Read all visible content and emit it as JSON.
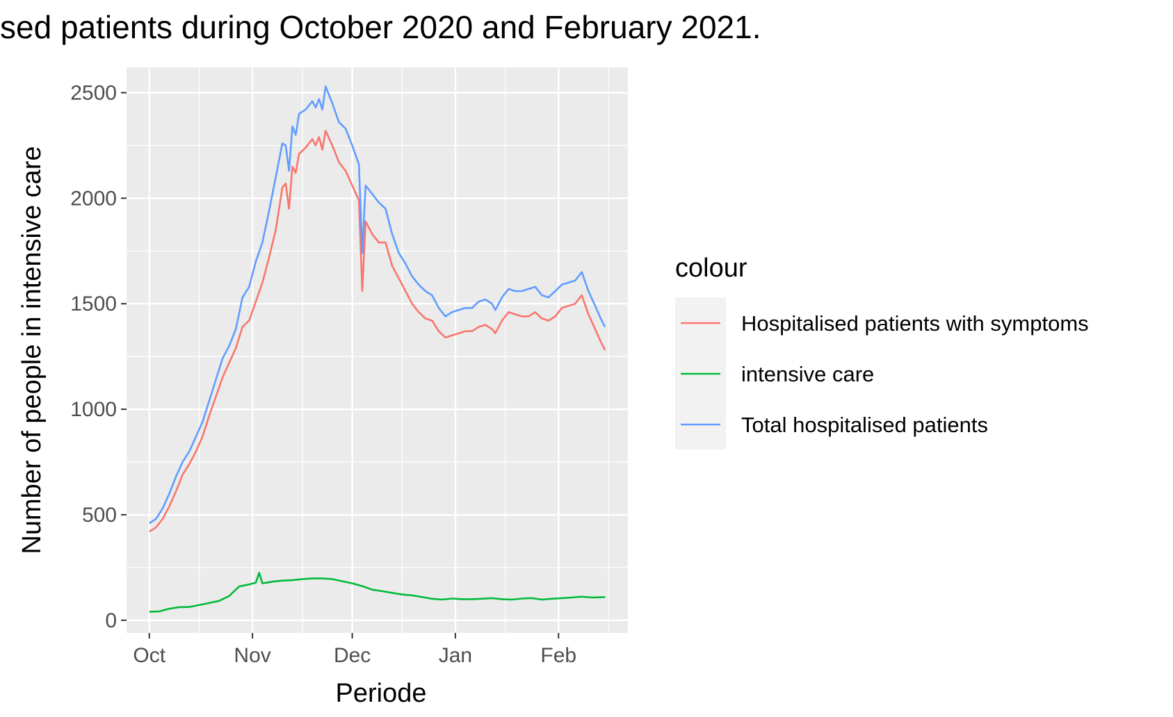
{
  "chart_data": {
    "type": "line",
    "title": "sed patients during October 2020 and February 2021.",
    "xlabel": "Periode",
    "ylabel": "Number of people in intensive care",
    "x_range": [
      "2020-10-01",
      "2021-02-15"
    ],
    "ylim": [
      -60,
      2620
    ],
    "y_ticks": [
      0,
      500,
      1000,
      1500,
      2000,
      2500
    ],
    "y_tick_labels": [
      "0",
      "500",
      "1000",
      "1500",
      "2000",
      "2500"
    ],
    "x_ticks": [
      {
        "date": "2020-10-01",
        "label": "Oct"
      },
      {
        "date": "2020-11-01",
        "label": "Nov"
      },
      {
        "date": "2020-12-01",
        "label": "Dec"
      },
      {
        "date": "2021-01-01",
        "label": "Jan"
      },
      {
        "date": "2021-02-01",
        "label": "Feb"
      }
    ],
    "x_minor_ticks": [
      "2020-10-16",
      "2020-11-16",
      "2020-12-16",
      "2021-01-16",
      "2021-02-16"
    ],
    "grid": true,
    "legend": {
      "title": "colour",
      "position": "right"
    },
    "series": [
      {
        "name": "Hospitalised patients with symptoms",
        "color": "#F8766D",
        "points": [
          [
            "2020-10-01",
            420
          ],
          [
            "2020-10-03",
            440
          ],
          [
            "2020-10-05",
            480
          ],
          [
            "2020-10-07",
            540
          ],
          [
            "2020-10-09",
            610
          ],
          [
            "2020-10-11",
            690
          ],
          [
            "2020-10-13",
            740
          ],
          [
            "2020-10-15",
            800
          ],
          [
            "2020-10-17",
            870
          ],
          [
            "2020-10-19",
            970
          ],
          [
            "2020-10-21",
            1060
          ],
          [
            "2020-10-23",
            1150
          ],
          [
            "2020-10-25",
            1220
          ],
          [
            "2020-10-27",
            1290
          ],
          [
            "2020-10-29",
            1390
          ],
          [
            "2020-10-31",
            1420
          ],
          [
            "2020-11-02",
            1510
          ],
          [
            "2020-11-04",
            1600
          ],
          [
            "2020-11-06",
            1720
          ],
          [
            "2020-11-08",
            1850
          ],
          [
            "2020-11-10",
            2050
          ],
          [
            "2020-11-11",
            2070
          ],
          [
            "2020-11-12",
            1950
          ],
          [
            "2020-11-13",
            2150
          ],
          [
            "2020-11-14",
            2120
          ],
          [
            "2020-11-15",
            2210
          ],
          [
            "2020-11-17",
            2240
          ],
          [
            "2020-11-19",
            2280
          ],
          [
            "2020-11-20",
            2250
          ],
          [
            "2020-11-21",
            2290
          ],
          [
            "2020-11-22",
            2230
          ],
          [
            "2020-11-23",
            2320
          ],
          [
            "2020-11-25",
            2250
          ],
          [
            "2020-11-27",
            2170
          ],
          [
            "2020-11-29",
            2130
          ],
          [
            "2020-12-01",
            2060
          ],
          [
            "2020-12-03",
            1990
          ],
          [
            "2020-12-04",
            1560
          ],
          [
            "2020-12-05",
            1890
          ],
          [
            "2020-12-07",
            1830
          ],
          [
            "2020-12-09",
            1790
          ],
          [
            "2020-12-11",
            1790
          ],
          [
            "2020-12-13",
            1680
          ],
          [
            "2020-12-15",
            1620
          ],
          [
            "2020-12-17",
            1560
          ],
          [
            "2020-12-19",
            1500
          ],
          [
            "2020-12-21",
            1460
          ],
          [
            "2020-12-23",
            1430
          ],
          [
            "2020-12-25",
            1420
          ],
          [
            "2020-12-27",
            1370
          ],
          [
            "2020-12-29",
            1340
          ],
          [
            "2020-12-31",
            1350
          ],
          [
            "2021-01-02",
            1360
          ],
          [
            "2021-01-04",
            1370
          ],
          [
            "2021-01-06",
            1370
          ],
          [
            "2021-01-08",
            1390
          ],
          [
            "2021-01-10",
            1400
          ],
          [
            "2021-01-12",
            1380
          ],
          [
            "2021-01-13",
            1360
          ],
          [
            "2021-01-15",
            1420
          ],
          [
            "2021-01-17",
            1460
          ],
          [
            "2021-01-19",
            1450
          ],
          [
            "2021-01-21",
            1440
          ],
          [
            "2021-01-23",
            1440
          ],
          [
            "2021-01-25",
            1460
          ],
          [
            "2021-01-27",
            1430
          ],
          [
            "2021-01-29",
            1420
          ],
          [
            "2021-01-31",
            1440
          ],
          [
            "2021-02-02",
            1480
          ],
          [
            "2021-02-04",
            1490
          ],
          [
            "2021-02-06",
            1500
          ],
          [
            "2021-02-08",
            1540
          ],
          [
            "2021-02-10",
            1450
          ],
          [
            "2021-02-12",
            1380
          ],
          [
            "2021-02-14",
            1310
          ],
          [
            "2021-02-15",
            1280
          ]
        ]
      },
      {
        "name": "intensive care",
        "color": "#00BA38",
        "points": [
          [
            "2020-10-01",
            40
          ],
          [
            "2020-10-04",
            42
          ],
          [
            "2020-10-07",
            55
          ],
          [
            "2020-10-10",
            62
          ],
          [
            "2020-10-13",
            63
          ],
          [
            "2020-10-16",
            72
          ],
          [
            "2020-10-19",
            82
          ],
          [
            "2020-10-22",
            92
          ],
          [
            "2020-10-25",
            115
          ],
          [
            "2020-10-28",
            160
          ],
          [
            "2020-10-31",
            170
          ],
          [
            "2020-11-02",
            178
          ],
          [
            "2020-11-03",
            225
          ],
          [
            "2020-11-04",
            175
          ],
          [
            "2020-11-07",
            183
          ],
          [
            "2020-11-10",
            188
          ],
          [
            "2020-11-13",
            190
          ],
          [
            "2020-11-16",
            195
          ],
          [
            "2020-11-19",
            198
          ],
          [
            "2020-11-22",
            198
          ],
          [
            "2020-11-25",
            195
          ],
          [
            "2020-11-28",
            185
          ],
          [
            "2020-12-01",
            175
          ],
          [
            "2020-12-04",
            162
          ],
          [
            "2020-12-07",
            145
          ],
          [
            "2020-12-10",
            138
          ],
          [
            "2020-12-13",
            130
          ],
          [
            "2020-12-16",
            122
          ],
          [
            "2020-12-19",
            118
          ],
          [
            "2020-12-22",
            110
          ],
          [
            "2020-12-25",
            102
          ],
          [
            "2020-12-28",
            98
          ],
          [
            "2020-12-31",
            103
          ],
          [
            "2021-01-03",
            100
          ],
          [
            "2021-01-06",
            100
          ],
          [
            "2021-01-09",
            102
          ],
          [
            "2021-01-12",
            105
          ],
          [
            "2021-01-15",
            100
          ],
          [
            "2021-01-18",
            98
          ],
          [
            "2021-01-21",
            103
          ],
          [
            "2021-01-24",
            105
          ],
          [
            "2021-01-27",
            98
          ],
          [
            "2021-01-30",
            102
          ],
          [
            "2021-02-02",
            105
          ],
          [
            "2021-02-05",
            108
          ],
          [
            "2021-02-08",
            112
          ],
          [
            "2021-02-11",
            108
          ],
          [
            "2021-02-15",
            110
          ]
        ]
      },
      {
        "name": "Total hospitalised patients",
        "color": "#619CFF",
        "points": [
          [
            "2020-10-01",
            460
          ],
          [
            "2020-10-03",
            480
          ],
          [
            "2020-10-05",
            530
          ],
          [
            "2020-10-07",
            600
          ],
          [
            "2020-10-09",
            680
          ],
          [
            "2020-10-11",
            750
          ],
          [
            "2020-10-13",
            800
          ],
          [
            "2020-10-15",
            870
          ],
          [
            "2020-10-17",
            940
          ],
          [
            "2020-10-19",
            1040
          ],
          [
            "2020-10-21",
            1140
          ],
          [
            "2020-10-23",
            1240
          ],
          [
            "2020-10-25",
            1300
          ],
          [
            "2020-10-27",
            1380
          ],
          [
            "2020-10-29",
            1530
          ],
          [
            "2020-10-31",
            1580
          ],
          [
            "2020-11-02",
            1700
          ],
          [
            "2020-11-04",
            1790
          ],
          [
            "2020-11-06",
            1940
          ],
          [
            "2020-11-08",
            2100
          ],
          [
            "2020-11-10",
            2260
          ],
          [
            "2020-11-11",
            2250
          ],
          [
            "2020-11-12",
            2130
          ],
          [
            "2020-11-13",
            2340
          ],
          [
            "2020-11-14",
            2300
          ],
          [
            "2020-11-15",
            2400
          ],
          [
            "2020-11-17",
            2420
          ],
          [
            "2020-11-19",
            2460
          ],
          [
            "2020-11-20",
            2430
          ],
          [
            "2020-11-21",
            2470
          ],
          [
            "2020-11-22",
            2420
          ],
          [
            "2020-11-23",
            2530
          ],
          [
            "2020-11-25",
            2450
          ],
          [
            "2020-11-27",
            2360
          ],
          [
            "2020-11-29",
            2330
          ],
          [
            "2020-12-01",
            2250
          ],
          [
            "2020-12-03",
            2160
          ],
          [
            "2020-12-04",
            1740
          ],
          [
            "2020-12-05",
            2060
          ],
          [
            "2020-12-07",
            2020
          ],
          [
            "2020-12-09",
            1980
          ],
          [
            "2020-12-11",
            1950
          ],
          [
            "2020-12-13",
            1830
          ],
          [
            "2020-12-15",
            1740
          ],
          [
            "2020-12-17",
            1690
          ],
          [
            "2020-12-19",
            1630
          ],
          [
            "2020-12-21",
            1590
          ],
          [
            "2020-12-23",
            1560
          ],
          [
            "2020-12-25",
            1540
          ],
          [
            "2020-12-27",
            1480
          ],
          [
            "2020-12-29",
            1440
          ],
          [
            "2020-12-31",
            1460
          ],
          [
            "2021-01-02",
            1470
          ],
          [
            "2021-01-04",
            1480
          ],
          [
            "2021-01-06",
            1480
          ],
          [
            "2021-01-08",
            1510
          ],
          [
            "2021-01-10",
            1520
          ],
          [
            "2021-01-12",
            1500
          ],
          [
            "2021-01-13",
            1470
          ],
          [
            "2021-01-15",
            1530
          ],
          [
            "2021-01-17",
            1570
          ],
          [
            "2021-01-19",
            1560
          ],
          [
            "2021-01-21",
            1560
          ],
          [
            "2021-01-23",
            1570
          ],
          [
            "2021-01-25",
            1580
          ],
          [
            "2021-01-27",
            1540
          ],
          [
            "2021-01-29",
            1530
          ],
          [
            "2021-01-31",
            1560
          ],
          [
            "2021-02-02",
            1590
          ],
          [
            "2021-02-04",
            1600
          ],
          [
            "2021-02-06",
            1610
          ],
          [
            "2021-02-08",
            1650
          ],
          [
            "2021-02-10",
            1560
          ],
          [
            "2021-02-12",
            1490
          ],
          [
            "2021-02-14",
            1420
          ],
          [
            "2021-02-15",
            1390
          ]
        ]
      }
    ]
  }
}
